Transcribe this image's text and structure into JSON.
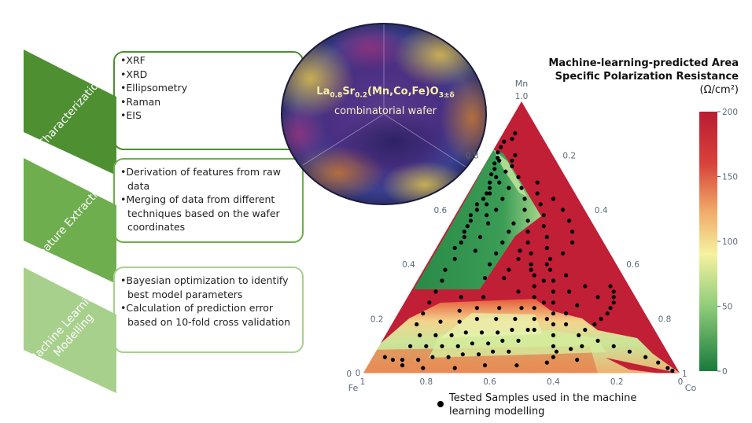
{
  "steps": [
    {
      "label": "Characterization",
      "items": [
        "XRF",
        "XRD",
        "Ellipsometry",
        "Raman",
        "EIS"
      ],
      "color": "#4e8f32"
    },
    {
      "label": "Feature Extraction",
      "items": [
        "Derivation of features from raw data",
        "Merging of data from different techniques based on the wafer coordinates"
      ],
      "color": "#6fae4f"
    },
    {
      "label": "Machine Learning Modelling",
      "items": [
        "Bayesian optimization to identify best model parameters",
        "Calculation of prediction error based on 10-fold cross validation"
      ],
      "color": "#a8d08d"
    }
  ],
  "wafer": {
    "formula_main": "La",
    "formula_sub1": "0.8",
    "formula_mid1": "Sr",
    "formula_sub2": "0.2",
    "formula_mid2": "(Mn,Co,Fe)O",
    "formula_sub3": "3±δ",
    "caption": "combinatorial wafer"
  },
  "colorbar": {
    "title": "Machine-learning-predicted Area Specific Polarization Resistance",
    "unit": "(Ω/cm²)",
    "ticks": [
      "200",
      "150",
      "100",
      "50",
      "0"
    ],
    "colors": {
      "high": "#b81d33",
      "mid": "#f5f2a0",
      "low": "#1a7a3c"
    }
  },
  "chart_data": {
    "type": "scatter",
    "subtype": "ternary",
    "axes": {
      "top": {
        "label": "Mn",
        "ticks": [
          "1.0",
          "0.8",
          "0.6",
          "0.4",
          "0.2",
          "0"
        ]
      },
      "left": {
        "label": "Fe",
        "ticks": [
          "1",
          "0.8",
          "0.6",
          "0.4",
          "0.2",
          "0"
        ]
      },
      "right": {
        "label": "Co",
        "ticks": [
          "1",
          "0.8",
          "0.6",
          "0.4",
          "0.2",
          "0"
        ]
      }
    },
    "legend": {
      "marker": "dot",
      "label": "Tested Samples used in the machine learning modelling"
    },
    "points": [
      [
        0.83,
        0.15,
        0.02
      ],
      [
        0.81,
        0.17,
        0.02
      ],
      [
        0.79,
        0.18,
        0.03
      ],
      [
        0.78,
        0.18,
        0.04
      ],
      [
        0.77,
        0.2,
        0.03
      ],
      [
        0.75,
        0.21,
        0.04
      ],
      [
        0.73,
        0.23,
        0.04
      ],
      [
        0.72,
        0.22,
        0.06
      ],
      [
        0.7,
        0.25,
        0.05
      ],
      [
        0.68,
        0.26,
        0.06
      ],
      [
        0.66,
        0.28,
        0.06
      ],
      [
        0.64,
        0.3,
        0.06
      ],
      [
        0.62,
        0.33,
        0.05
      ],
      [
        0.6,
        0.34,
        0.06
      ],
      [
        0.58,
        0.37,
        0.05
      ],
      [
        0.56,
        0.38,
        0.06
      ],
      [
        0.54,
        0.4,
        0.06
      ],
      [
        0.52,
        0.42,
        0.06
      ],
      [
        0.5,
        0.43,
        0.07
      ],
      [
        0.48,
        0.45,
        0.07
      ],
      [
        0.76,
        0.15,
        0.09
      ],
      [
        0.72,
        0.15,
        0.13
      ],
      [
        0.68,
        0.16,
        0.16
      ],
      [
        0.64,
        0.17,
        0.19
      ],
      [
        0.6,
        0.19,
        0.21
      ],
      [
        0.56,
        0.2,
        0.24
      ],
      [
        0.52,
        0.22,
        0.26
      ],
      [
        0.48,
        0.24,
        0.28
      ],
      [
        0.44,
        0.25,
        0.31
      ],
      [
        0.4,
        0.27,
        0.33
      ],
      [
        0.36,
        0.28,
        0.36
      ],
      [
        0.32,
        0.3,
        0.38
      ],
      [
        0.28,
        0.32,
        0.4
      ],
      [
        0.24,
        0.34,
        0.42
      ],
      [
        0.2,
        0.36,
        0.44
      ],
      [
        0.16,
        0.38,
        0.46
      ],
      [
        0.7,
        0.1,
        0.2
      ],
      [
        0.66,
        0.12,
        0.22
      ],
      [
        0.62,
        0.13,
        0.25
      ],
      [
        0.58,
        0.14,
        0.28
      ],
      [
        0.54,
        0.16,
        0.3
      ],
      [
        0.5,
        0.17,
        0.33
      ],
      [
        0.46,
        0.19,
        0.35
      ],
      [
        0.42,
        0.2,
        0.38
      ],
      [
        0.38,
        0.22,
        0.4
      ],
      [
        0.34,
        0.23,
        0.43
      ],
      [
        0.3,
        0.25,
        0.45
      ],
      [
        0.26,
        0.27,
        0.47
      ],
      [
        0.22,
        0.29,
        0.49
      ],
      [
        0.18,
        0.31,
        0.51
      ],
      [
        0.14,
        0.33,
        0.53
      ],
      [
        0.1,
        0.35,
        0.55
      ],
      [
        0.06,
        0.37,
        0.57
      ],
      [
        0.12,
        0.2,
        0.68
      ],
      [
        0.1,
        0.16,
        0.74
      ],
      [
        0.08,
        0.12,
        0.8
      ],
      [
        0.06,
        0.08,
        0.86
      ],
      [
        0.04,
        0.05,
        0.91
      ],
      [
        0.02,
        0.03,
        0.95
      ],
      [
        0.01,
        0.02,
        0.97
      ],
      [
        0.14,
        0.25,
        0.61
      ],
      [
        0.16,
        0.22,
        0.62
      ],
      [
        0.18,
        0.18,
        0.64
      ],
      [
        0.2,
        0.15,
        0.65
      ],
      [
        0.22,
        0.12,
        0.66
      ],
      [
        0.24,
        0.1,
        0.66
      ],
      [
        0.26,
        0.08,
        0.66
      ],
      [
        0.28,
        0.07,
        0.65
      ],
      [
        0.3,
        0.06,
        0.64
      ],
      [
        0.32,
        0.06,
        0.62
      ],
      [
        0.08,
        0.5,
        0.42
      ],
      [
        0.08,
        0.55,
        0.37
      ],
      [
        0.07,
        0.6,
        0.33
      ],
      [
        0.07,
        0.65,
        0.28
      ],
      [
        0.06,
        0.7,
        0.24
      ],
      [
        0.06,
        0.75,
        0.19
      ],
      [
        0.05,
        0.8,
        0.15
      ],
      [
        0.05,
        0.85,
        0.1
      ],
      [
        0.05,
        0.88,
        0.07
      ],
      [
        0.06,
        0.9,
        0.04
      ],
      [
        0.12,
        0.45,
        0.43
      ],
      [
        0.12,
        0.5,
        0.38
      ],
      [
        0.11,
        0.55,
        0.34
      ],
      [
        0.11,
        0.6,
        0.29
      ],
      [
        0.1,
        0.65,
        0.25
      ],
      [
        0.1,
        0.7,
        0.2
      ],
      [
        0.1,
        0.75,
        0.15
      ],
      [
        0.1,
        0.8,
        0.1
      ],
      [
        0.16,
        0.4,
        0.44
      ],
      [
        0.16,
        0.45,
        0.39
      ],
      [
        0.15,
        0.5,
        0.35
      ],
      [
        0.15,
        0.55,
        0.3
      ],
      [
        0.15,
        0.6,
        0.25
      ],
      [
        0.14,
        0.65,
        0.21
      ],
      [
        0.14,
        0.7,
        0.16
      ],
      [
        0.14,
        0.75,
        0.11
      ],
      [
        0.2,
        0.42,
        0.38
      ],
      [
        0.2,
        0.48,
        0.32
      ],
      [
        0.2,
        0.54,
        0.26
      ],
      [
        0.19,
        0.6,
        0.21
      ],
      [
        0.19,
        0.66,
        0.15
      ],
      [
        0.24,
        0.45,
        0.31
      ],
      [
        0.24,
        0.52,
        0.24
      ],
      [
        0.23,
        0.58,
        0.19
      ],
      [
        0.28,
        0.48,
        0.24
      ],
      [
        0.28,
        0.55,
        0.17
      ],
      [
        0.08,
        0.35,
        0.57
      ],
      [
        0.09,
        0.3,
        0.61
      ],
      [
        0.1,
        0.26,
        0.64
      ],
      [
        0.05,
        0.3,
        0.65
      ],
      [
        0.04,
        0.4,
        0.56
      ],
      [
        0.03,
        0.5,
        0.47
      ],
      [
        0.03,
        0.6,
        0.37
      ],
      [
        0.02,
        0.7,
        0.28
      ],
      [
        0.02,
        0.8,
        0.18
      ],
      [
        0.03,
        0.86,
        0.11
      ],
      [
        0.35,
        0.38,
        0.27
      ],
      [
        0.38,
        0.35,
        0.27
      ],
      [
        0.42,
        0.3,
        0.28
      ],
      [
        0.45,
        0.28,
        0.27
      ],
      [
        0.35,
        0.44,
        0.21
      ],
      [
        0.4,
        0.4,
        0.2
      ],
      [
        0.44,
        0.36,
        0.2
      ],
      [
        0.48,
        0.32,
        0.2
      ],
      [
        0.52,
        0.28,
        0.2
      ],
      [
        0.55,
        0.25,
        0.2
      ],
      [
        0.45,
        0.42,
        0.13
      ],
      [
        0.5,
        0.38,
        0.12
      ],
      [
        0.55,
        0.33,
        0.12
      ],
      [
        0.6,
        0.28,
        0.12
      ],
      [
        0.64,
        0.24,
        0.12
      ],
      [
        0.68,
        0.2,
        0.12
      ],
      [
        0.42,
        0.5,
        0.08
      ],
      [
        0.46,
        0.48,
        0.06
      ],
      [
        0.38,
        0.55,
        0.07
      ],
      [
        0.34,
        0.58,
        0.08
      ],
      [
        0.3,
        0.62,
        0.08
      ],
      [
        0.26,
        0.66,
        0.08
      ],
      [
        0.22,
        0.7,
        0.08
      ],
      [
        0.18,
        0.74,
        0.08
      ],
      [
        0.4,
        0.22,
        0.38
      ],
      [
        0.44,
        0.15,
        0.41
      ],
      [
        0.48,
        0.1,
        0.42
      ],
      [
        0.52,
        0.08,
        0.4
      ],
      [
        0.56,
        0.07,
        0.37
      ],
      [
        0.6,
        0.07,
        0.33
      ],
      [
        0.64,
        0.08,
        0.28
      ],
      [
        0.36,
        0.18,
        0.46
      ],
      [
        0.32,
        0.14,
        0.54
      ],
      [
        0.28,
        0.12,
        0.6
      ],
      [
        0.25,
        0.2,
        0.55
      ],
      [
        0.3,
        0.2,
        0.5
      ],
      [
        0.34,
        0.26,
        0.4
      ],
      [
        0.38,
        0.28,
        0.34
      ],
      [
        0.26,
        0.3,
        0.44
      ],
      [
        0.22,
        0.25,
        0.53
      ],
      [
        0.18,
        0.27,
        0.55
      ],
      [
        0.2,
        0.32,
        0.48
      ],
      [
        0.24,
        0.38,
        0.38
      ],
      [
        0.3,
        0.36,
        0.34
      ],
      [
        0.58,
        0.32,
        0.1
      ],
      [
        0.62,
        0.3,
        0.08
      ],
      [
        0.66,
        0.27,
        0.07
      ],
      [
        0.7,
        0.22,
        0.08
      ],
      [
        0.74,
        0.18,
        0.08
      ],
      [
        0.78,
        0.14,
        0.08
      ],
      [
        0.8,
        0.12,
        0.08
      ],
      [
        0.86,
        0.1,
        0.04
      ],
      [
        0.88,
        0.08,
        0.04
      ],
      [
        0.85,
        0.13,
        0.02
      ]
    ]
  }
}
